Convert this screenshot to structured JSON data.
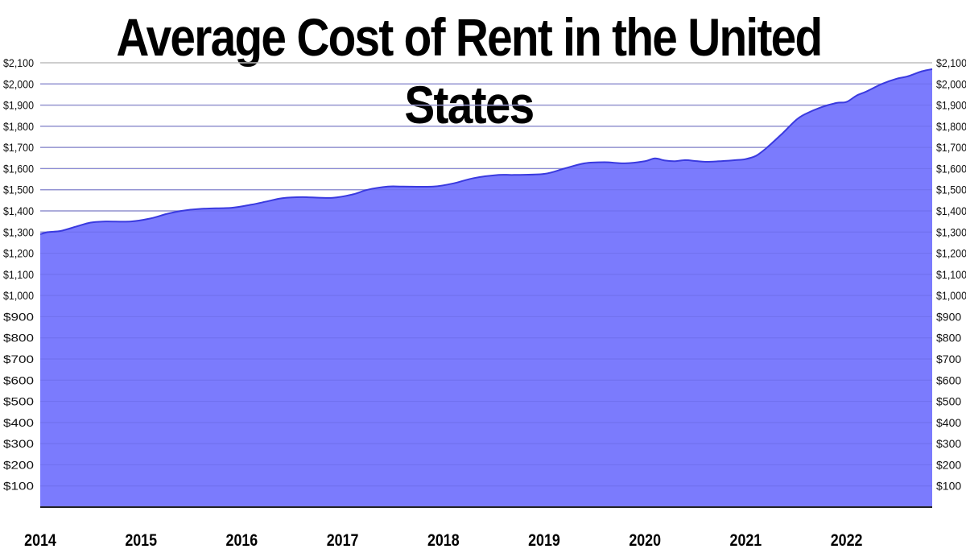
{
  "title": "Average Cost of Rent in the United States",
  "chart_data": {
    "type": "area",
    "title": "Average Cost of Rent in the United States",
    "xlabel": "",
    "ylabel": "",
    "x_tick_labels": [
      "2014",
      "2015",
      "2016",
      "2017",
      "2018",
      "2019",
      "2020",
      "2021",
      "2022"
    ],
    "y_tick_labels": [
      "$100",
      "$200",
      "$300",
      "$400",
      "$500",
      "$600",
      "$700",
      "$800",
      "$900",
      "$1,000",
      "$1,100",
      "$1,200",
      "$1,300",
      "$1,400",
      "$1,500",
      "$1,600",
      "$1,700",
      "$1,800",
      "$1,900",
      "$2,000",
      "$2,100"
    ],
    "y_ticks": [
      100,
      200,
      300,
      400,
      500,
      600,
      700,
      800,
      900,
      1000,
      1100,
      1200,
      1300,
      1400,
      1500,
      1600,
      1700,
      1800,
      1900,
      2000,
      2100
    ],
    "ylim": [
      0,
      2100
    ],
    "xlim": [
      2014,
      2022.85
    ],
    "grid": true,
    "y_axis_both_sides": true,
    "fill_color": "#7b7bfd",
    "line_color": "#3a3adf",
    "series": [
      {
        "x": [
          2014.0,
          2014.08,
          2014.2,
          2014.35,
          2014.5,
          2014.65,
          2014.9,
          2015.1,
          2015.25,
          2015.4,
          2015.6,
          2015.9,
          2016.1,
          2016.25,
          2016.4,
          2016.6,
          2016.9,
          2017.1,
          2017.25,
          2017.45,
          2017.6,
          2017.9,
          2018.1,
          2018.3,
          2018.55,
          2018.7,
          2019.0,
          2019.2,
          2019.4,
          2019.6,
          2019.8,
          2020.0,
          2020.1,
          2020.2,
          2020.3,
          2020.4,
          2020.5,
          2020.6,
          2020.75,
          2020.9,
          2021.0,
          2021.1,
          2021.2,
          2021.35,
          2021.5,
          2021.6,
          2021.75,
          2021.9,
          2022.0,
          2022.1,
          2022.2,
          2022.35,
          2022.5,
          2022.6,
          2022.75,
          2022.85
        ],
        "values": [
          1290,
          1300,
          1305,
          1325,
          1345,
          1350,
          1350,
          1365,
          1385,
          1400,
          1410,
          1415,
          1430,
          1445,
          1460,
          1465,
          1462,
          1478,
          1500,
          1515,
          1515,
          1515,
          1530,
          1555,
          1570,
          1570,
          1575,
          1600,
          1625,
          1630,
          1625,
          1635,
          1648,
          1638,
          1635,
          1640,
          1636,
          1632,
          1635,
          1640,
          1645,
          1660,
          1695,
          1760,
          1830,
          1860,
          1890,
          1910,
          1915,
          1945,
          1965,
          2000,
          2025,
          2035,
          2060,
          2070
        ]
      }
    ]
  }
}
